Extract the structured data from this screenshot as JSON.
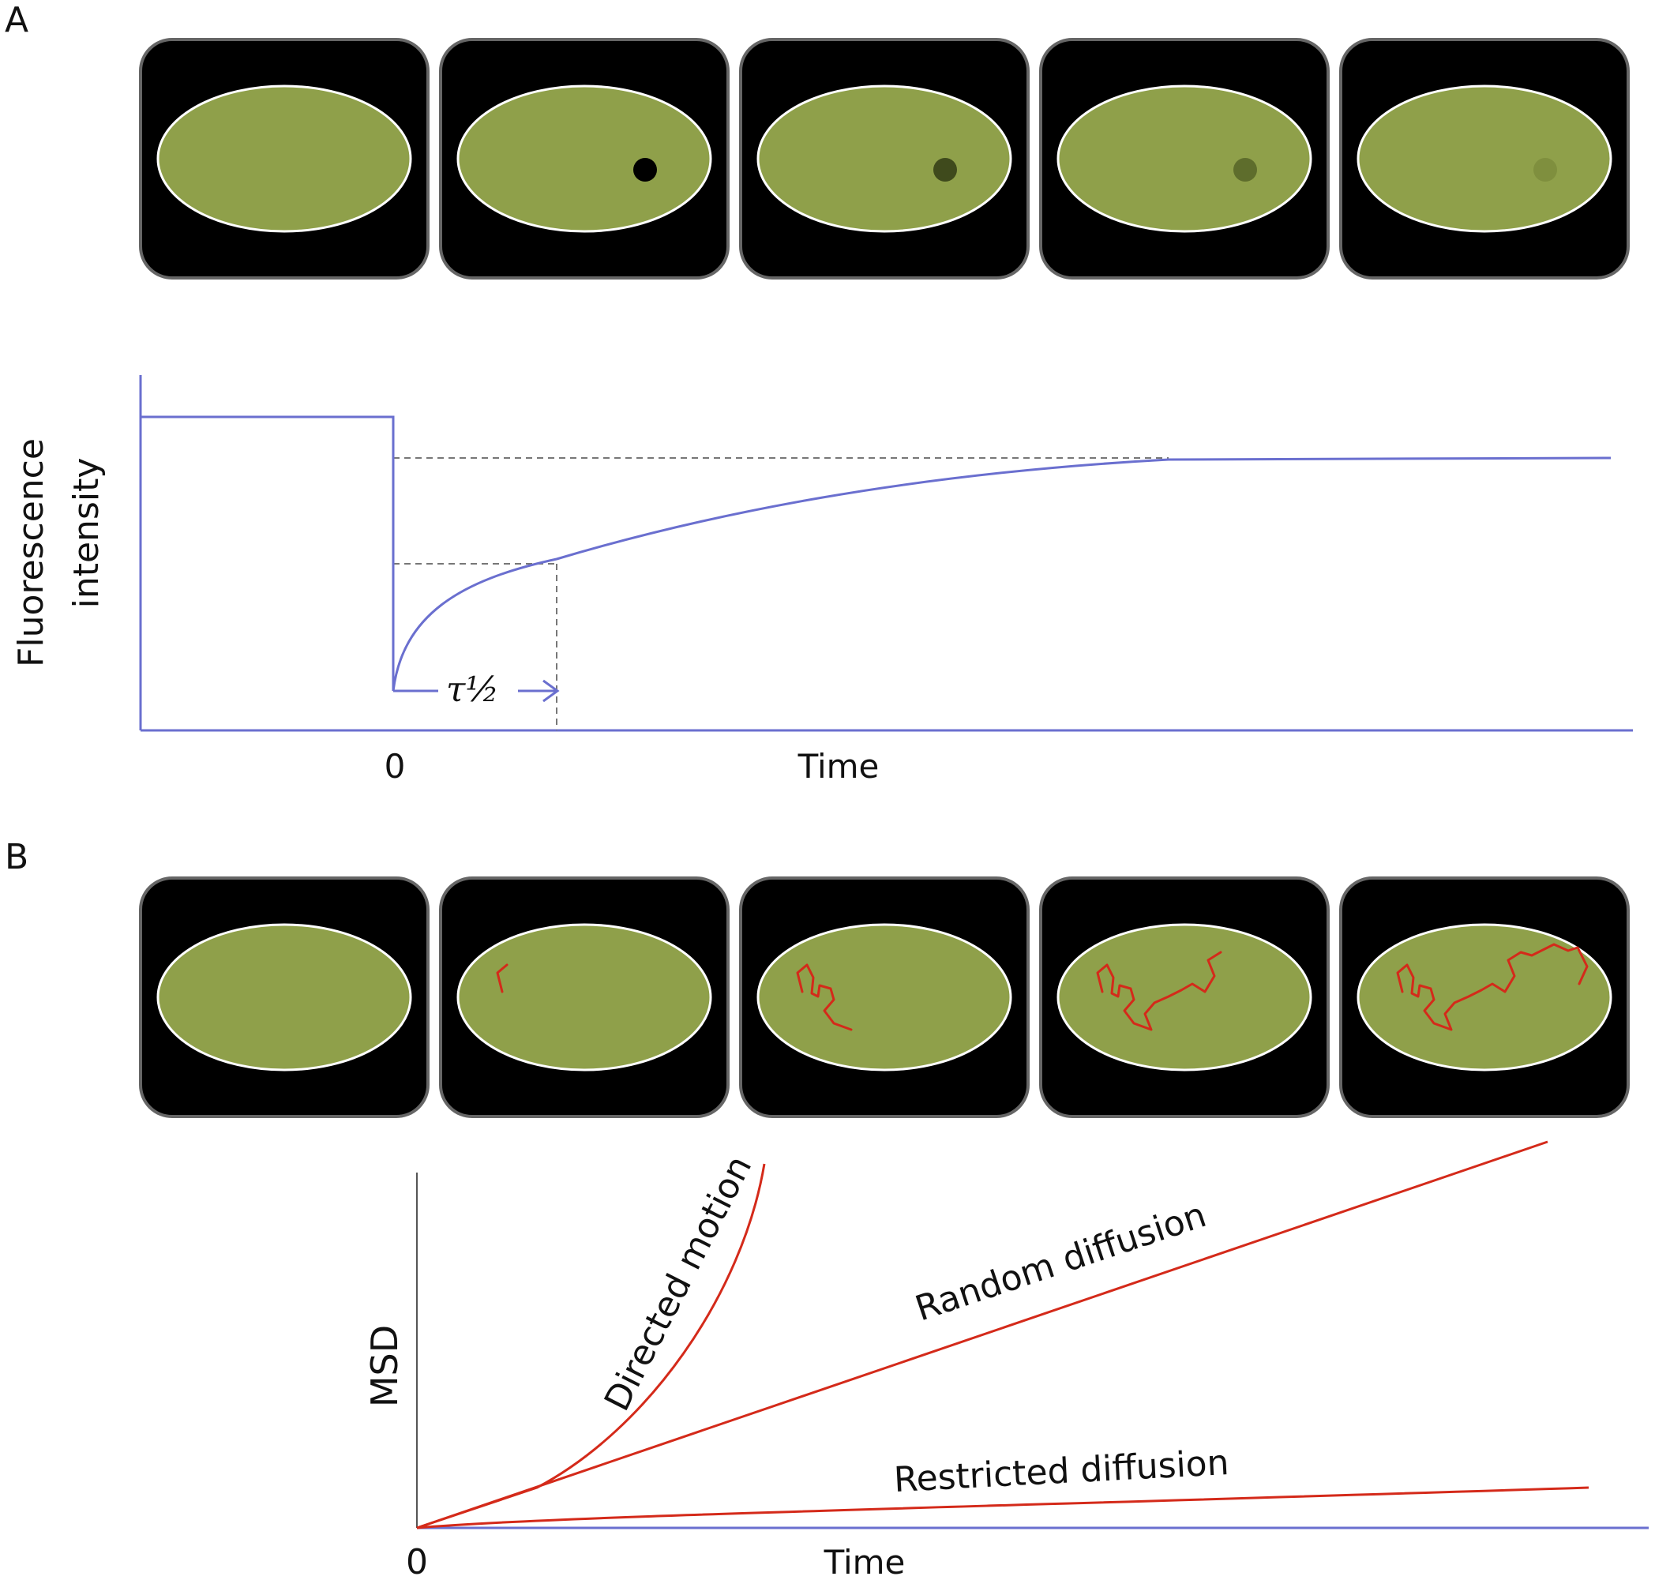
{
  "panels": {
    "a": {
      "label": "A",
      "frames": [
        {
          "spot_color": null
        },
        {
          "spot_color": "#000000"
        },
        {
          "spot_color": "#3f4a1c"
        },
        {
          "spot_color": "#5e6d2c"
        },
        {
          "spot_color": "#7f8f3e"
        }
      ],
      "chart": {
        "ylabel_line1": "Fluorescence",
        "ylabel_line2": "intensity",
        "xlabel": "Time",
        "origin_label": "0",
        "half_time_label": "τ½"
      }
    },
    "b": {
      "label": "B",
      "frames": [
        {
          "track_steps": 0
        },
        {
          "track_steps": 1
        },
        {
          "track_steps": 2
        },
        {
          "track_steps": 3
        },
        {
          "track_steps": 4
        }
      ],
      "chart": {
        "ylabel": "MSD",
        "xlabel": "Time",
        "origin_label": "0",
        "curves": [
          {
            "label": "Directed motion"
          },
          {
            "label": "Random diffusion"
          },
          {
            "label": "Restricted diffusion"
          }
        ]
      }
    }
  },
  "colors": {
    "cell_fill": "#8fa04a",
    "frame_bg": "#000000",
    "frame_border": "#666666",
    "axis": "#6a6fcf",
    "curve_a": "#6a6fcf",
    "track": "#d42a1a",
    "msd_curve": "#d42a1a"
  }
}
